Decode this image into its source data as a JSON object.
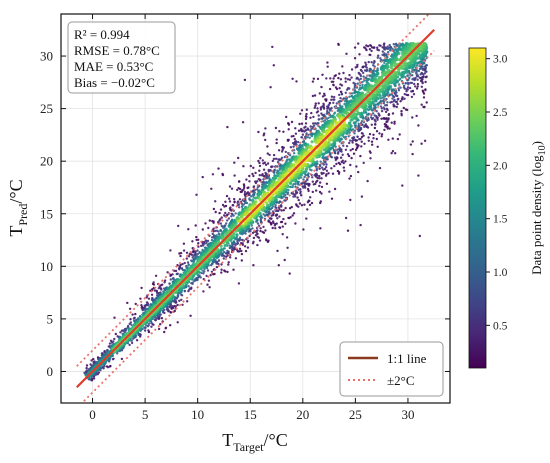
{
  "chart_data": {
    "type": "scatter",
    "density_colored": true,
    "xlabel": {
      "main": "T",
      "sub": "Target",
      "unit": "/°C"
    },
    "ylabel": {
      "main": "T",
      "sub": "Pred",
      "unit": "/°C"
    },
    "xlim": [
      -3,
      34
    ],
    "ylim": [
      -3,
      34
    ],
    "xticks": [
      0,
      5,
      10,
      15,
      20,
      25,
      30
    ],
    "yticks": [
      0,
      5,
      10,
      15,
      20,
      25,
      30
    ],
    "grid": true,
    "stats": {
      "r2": "R² = 0.994",
      "rmse": "RMSE = 0.78°C",
      "mae": "MAE = 0.53°C",
      "bias": "Bias = −0.02°C"
    },
    "reference_lines": [
      {
        "name": "1:1 line",
        "x": [
          -1.5,
          32.5
        ],
        "y": [
          -1.5,
          32.5
        ],
        "color": "#e03a2a",
        "style": "solid"
      },
      {
        "name": "±2°C",
        "offset": 2,
        "x": [
          -1.5,
          32.5
        ],
        "color": "#e8706b",
        "style": "dotted"
      }
    ],
    "legend": {
      "position": "bottom-right",
      "entries": [
        {
          "label": "1:1 line",
          "color": "#8b3a1f",
          "style": "solid"
        },
        {
          "label": "±2°C",
          "color": "#e8706b",
          "style": "dotted"
        }
      ]
    },
    "colorbar": {
      "label": "Data point density (log",
      "label_sub": "10",
      "label_end": ")",
      "range": [
        0.1,
        3.1
      ],
      "ticks": [
        "0.5",
        "1.0",
        "1.5",
        "2.0",
        "2.5",
        "3.0"
      ],
      "tick_values": [
        0.5,
        1.0,
        1.5,
        2.0,
        2.5,
        3.0
      ],
      "colormap": "viridis"
    },
    "density_band": {
      "center": "y = x",
      "x_range": [
        -0.5,
        32
      ],
      "core_halfwidth": [
        0.4,
        2.0
      ],
      "outer_halfwidth": [
        1.2,
        4.0
      ]
    }
  },
  "colors": {
    "viridis": [
      "#440154",
      "#482878",
      "#3e4a89",
      "#31688e",
      "#26828e",
      "#1f9e89",
      "#35b779",
      "#6ece58",
      "#b5de2b",
      "#fde725"
    ]
  }
}
